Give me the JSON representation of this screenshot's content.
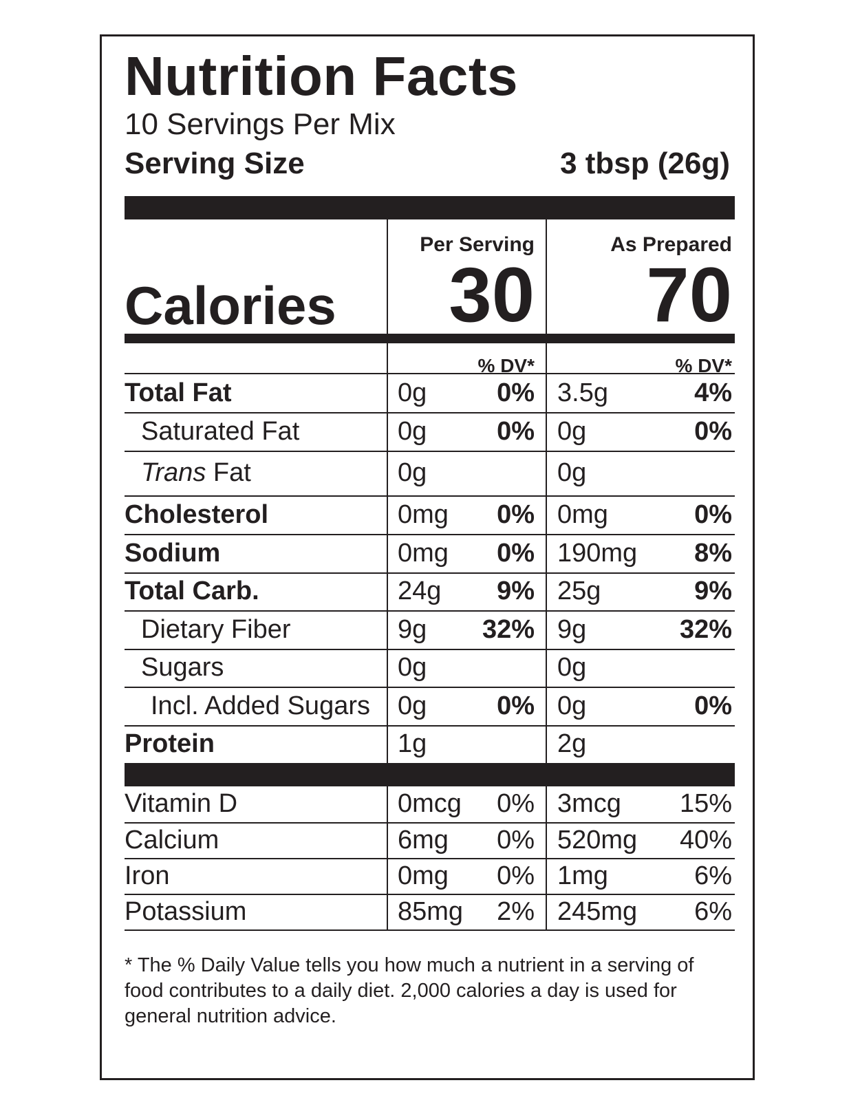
{
  "label": {
    "title": "Nutrition Facts",
    "servings_per_container": "10 Servings Per Mix",
    "serving_size_label": "Serving Size",
    "serving_size_value": "3 tbsp (26g)",
    "col1_header": "Per Serving",
    "col2_header": "As Prepared",
    "calories_label": "Calories",
    "calories_per_serving": "30",
    "calories_as_prepared": "70",
    "dv_header": "% DV*",
    "nutrients": [
      {
        "name": "Total Fat",
        "amt1": "0g",
        "pct1": "0%",
        "amt2": "3.5g",
        "pct2": "4%"
      },
      {
        "name": "Saturated Fat",
        "amt1": "0g",
        "pct1": "0%",
        "amt2": "0g",
        "pct2": "0%"
      },
      {
        "name_italic": "Trans",
        "name_rest": " Fat",
        "amt1": "0g",
        "amt2": "0g"
      },
      {
        "name": "Cholesterol",
        "amt1": "0mg",
        "pct1": "0%",
        "amt2": "0mg",
        "pct2": "0%"
      },
      {
        "name": "Sodium",
        "amt1": "0mg",
        "pct1": "0%",
        "amt2": "190mg",
        "pct2": "8%"
      },
      {
        "name": "Total Carb.",
        "amt1": "24g",
        "pct1": "9%",
        "amt2": "25g",
        "pct2": "9%"
      },
      {
        "name": "Dietary Fiber",
        "amt1": "9g",
        "pct1": "32%",
        "amt2": "9g",
        "pct2": "32%"
      },
      {
        "name": "Sugars",
        "amt1": "0g",
        "amt2": "0g"
      },
      {
        "name": "Incl. Added Sugars",
        "amt1": "0g",
        "pct1": "0%",
        "amt2": "0g",
        "pct2": "0%"
      },
      {
        "name": "Protein",
        "amt1": "1g",
        "amt2": "2g"
      }
    ],
    "vitamins": [
      {
        "name": "Vitamin D",
        "amt1": "0mcg",
        "pct1": "0%",
        "amt2": "3mcg",
        "pct2": "15%"
      },
      {
        "name": "Calcium",
        "amt1": "6mg",
        "pct1": "0%",
        "amt2": "520mg",
        "pct2": "40%"
      },
      {
        "name": "Iron",
        "amt1": "0mg",
        "pct1": "0%",
        "amt2": "1mg",
        "pct2": "6%"
      },
      {
        "name": "Potassium",
        "amt1": "85mg",
        "pct1": "2%",
        "amt2": "245mg",
        "pct2": "6%"
      }
    ],
    "footnote": "* The % Daily Value tells you how much a nutrient in a serving of food contributes to a daily diet. 2,000 calories a day is used for general nutrition advice."
  },
  "colors": {
    "ink": "#231f20",
    "background": "#ffffff"
  }
}
